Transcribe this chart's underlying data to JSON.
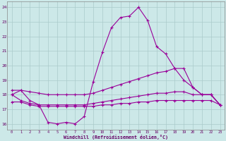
{
  "xlabel": "Windchill (Refroidissement éolien,°C)",
  "x_hours": [
    0,
    1,
    2,
    3,
    4,
    5,
    6,
    7,
    8,
    9,
    10,
    11,
    12,
    13,
    14,
    15,
    16,
    17,
    18,
    19,
    20,
    21,
    22,
    23
  ],
  "line_main": [
    18.0,
    18.3,
    17.6,
    17.3,
    16.1,
    16.0,
    16.1,
    16.0,
    16.5,
    18.9,
    20.9,
    22.6,
    23.3,
    23.4,
    24.0,
    23.1,
    21.3,
    20.8,
    19.8,
    19.0,
    18.5,
    18.0,
    18.0,
    17.3
  ],
  "line_top": [
    18.3,
    18.3,
    18.2,
    18.1,
    18.0,
    18.0,
    18.0,
    18.0,
    18.0,
    18.1,
    18.3,
    18.5,
    18.7,
    18.9,
    19.1,
    19.3,
    19.5,
    19.6,
    19.8,
    19.8,
    18.5,
    18.0,
    18.0,
    17.3
  ],
  "line_mid": [
    18.0,
    17.6,
    17.4,
    17.3,
    17.3,
    17.3,
    17.3,
    17.3,
    17.3,
    17.4,
    17.5,
    17.6,
    17.7,
    17.8,
    17.9,
    18.0,
    18.1,
    18.1,
    18.2,
    18.2,
    18.0,
    18.0,
    18.0,
    17.3
  ],
  "line_bot": [
    17.5,
    17.5,
    17.3,
    17.2,
    17.2,
    17.2,
    17.2,
    17.2,
    17.2,
    17.2,
    17.3,
    17.3,
    17.4,
    17.4,
    17.5,
    17.5,
    17.6,
    17.6,
    17.6,
    17.6,
    17.6,
    17.6,
    17.6,
    17.3
  ],
  "ylim": [
    15.6,
    24.4
  ],
  "yticks": [
    16,
    17,
    18,
    19,
    20,
    21,
    22,
    23,
    24
  ],
  "xlim": [
    -0.5,
    23.5
  ],
  "line_color": "#990099",
  "bg_color": "#cce8e8",
  "grid_color": "#aacaca",
  "spine_color": "#888888",
  "text_color": "#660066",
  "tick_color": "#660066"
}
